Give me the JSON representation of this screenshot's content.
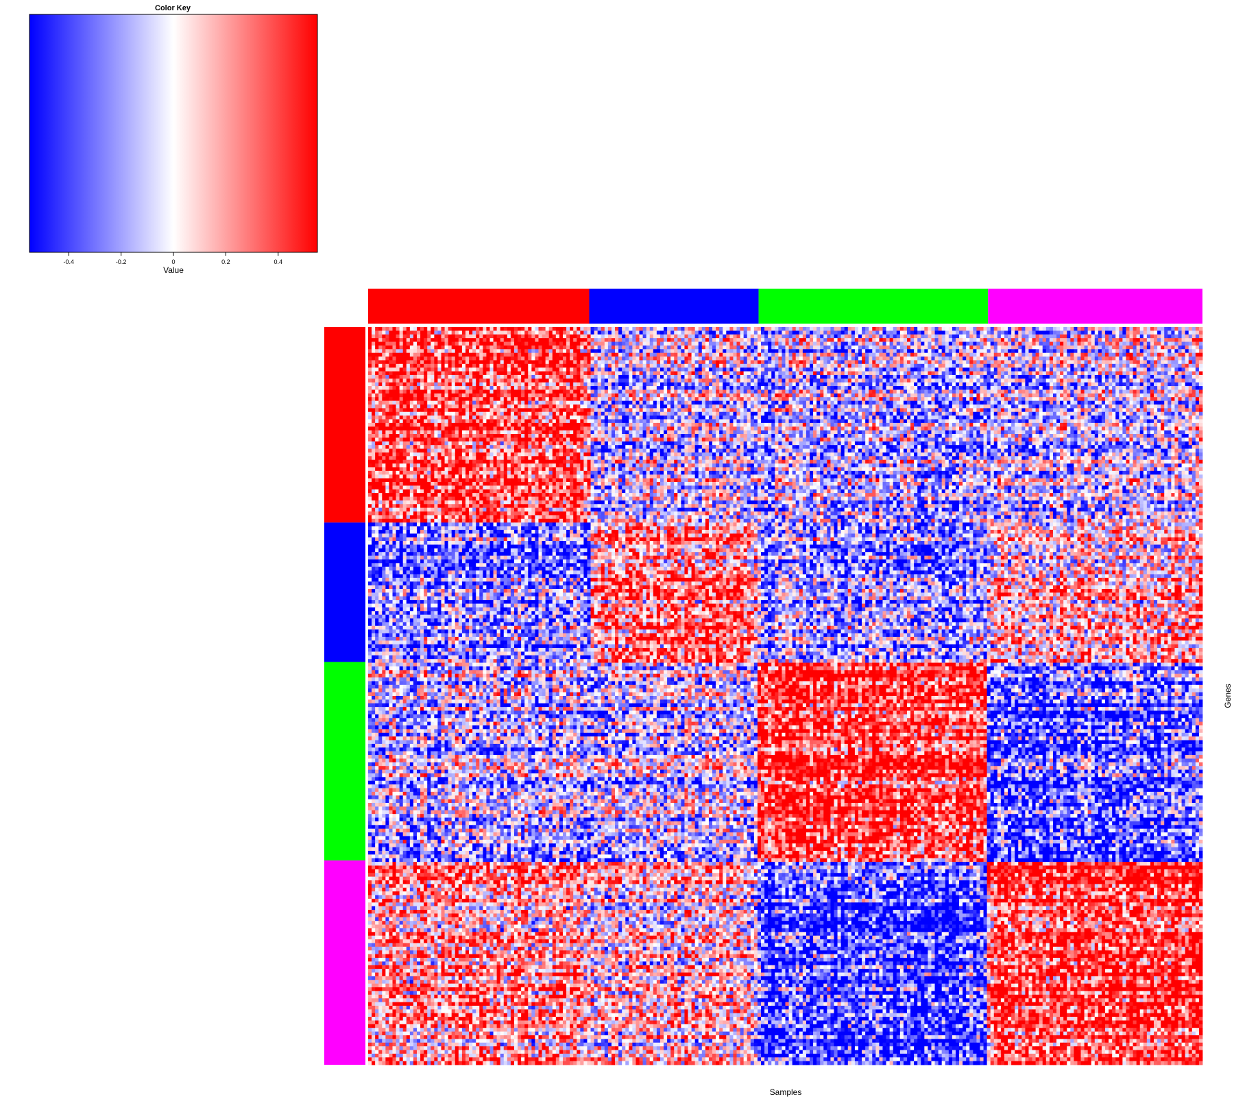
{
  "chart_data": {
    "type": "heatmap",
    "xlabel": "Samples",
    "ylabel": "Genes",
    "color_key": {
      "title": "Color Key",
      "label": "Value",
      "range": [
        -0.55,
        0.55
      ],
      "ticks": [
        -0.4,
        -0.2,
        0,
        0.2,
        0.4
      ],
      "tick_labels": [
        "-0.4",
        "-0.2",
        "0",
        "0.2",
        "0.4"
      ],
      "colors": {
        "low": "#0000ff",
        "mid": "#ffffff",
        "high": "#ff0000"
      }
    },
    "column_groups": [
      {
        "color": "#ff0000",
        "fraction": 0.265
      },
      {
        "color": "#0000ff",
        "fraction": 0.203
      },
      {
        "color": "#00ff00",
        "fraction": 0.275
      },
      {
        "color": "#ff00ff",
        "fraction": 0.257
      }
    ],
    "row_groups": [
      {
        "color": "#ff0000",
        "fraction": 0.265
      },
      {
        "color": "#0000ff",
        "fraction": 0.189
      },
      {
        "color": "#00ff00",
        "fraction": 0.269
      },
      {
        "color": "#ff00ff",
        "fraction": 0.277
      }
    ],
    "matrix_size": {
      "rows": 200,
      "columns": 240
    },
    "block_means": [
      [
        0.35,
        -0.1,
        -0.15,
        -0.1
      ],
      [
        -0.25,
        0.3,
        -0.2,
        0.15
      ],
      [
        -0.15,
        -0.1,
        0.45,
        -0.35
      ],
      [
        0.2,
        0.1,
        -0.4,
        0.45
      ]
    ]
  }
}
